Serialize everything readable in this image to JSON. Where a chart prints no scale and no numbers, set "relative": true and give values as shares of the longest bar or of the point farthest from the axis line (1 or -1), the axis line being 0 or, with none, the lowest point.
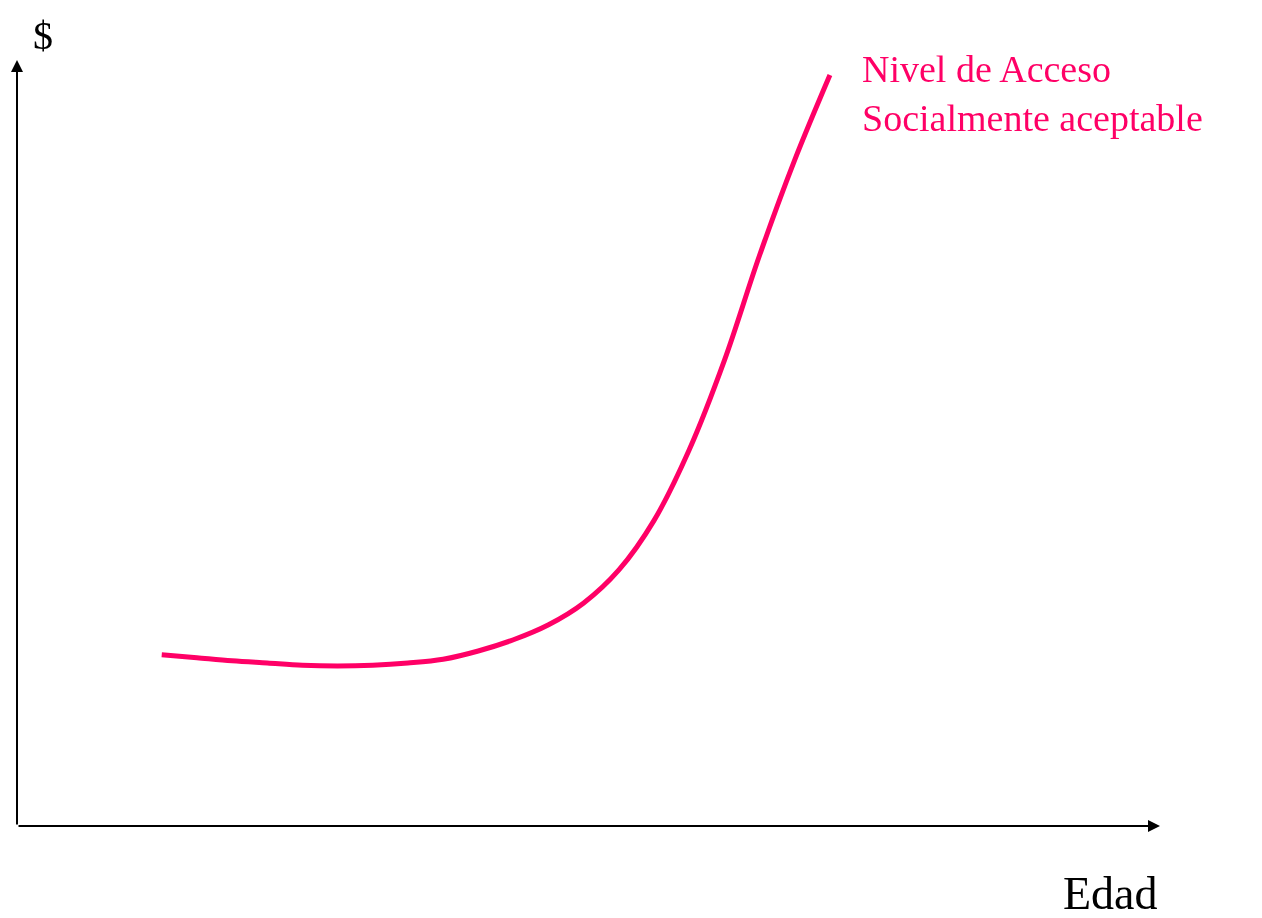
{
  "chart_data": {
    "type": "line",
    "relative": true,
    "xlabel": "Edad",
    "ylabel": "$",
    "categories": [
      null,
      null,
      null,
      null,
      null,
      null,
      null,
      null,
      null,
      null,
      null,
      null,
      null,
      null,
      null,
      null,
      null,
      null,
      null,
      null
    ],
    "series": [
      {
        "name": "Nivel de Acceso\nSocialmente aceptable",
        "color": "#ff0066",
        "values": [
          0.228,
          0.224,
          0.22,
          0.217,
          0.214,
          0.213,
          0.214,
          0.217,
          0.222,
          0.233,
          0.248,
          0.268,
          0.297,
          0.341,
          0.407,
          0.501,
          0.62,
          0.76,
          0.887,
          1.0
        ]
      }
    ],
    "legend": false,
    "marker": "none",
    "line_style": "solid"
  }
}
